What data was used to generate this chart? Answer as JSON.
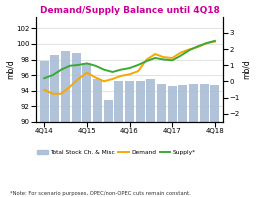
{
  "title": "Demand/Supply Balance until 4Q18",
  "title_color": "#cc0099",
  "ylabel_left": "mb/d",
  "ylabel_right": "mb/d",
  "background_color": "#ffffff",
  "bars_left_y": [
    97.8,
    98.6,
    99.1,
    98.8,
    97.5,
    95.5,
    92.8,
    95.3,
    95.3,
    95.2,
    95.5,
    94.8,
    94.6,
    94.7,
    94.8,
    94.8,
    94.7
  ],
  "bar_x": [
    0,
    0.5,
    1.0,
    1.5,
    2.0,
    2.5,
    3.0,
    3.5,
    4.0,
    4.5,
    5.0,
    5.5,
    6.0,
    6.5,
    7.0,
    7.5,
    8.0
  ],
  "demand_x": [
    0,
    0.4,
    0.8,
    1.2,
    1.6,
    2.0,
    2.4,
    2.8,
    3.2,
    3.6,
    4.0,
    4.4,
    4.8,
    5.2,
    5.6,
    6.0,
    6.4,
    6.8,
    7.2,
    7.6,
    8.0
  ],
  "demand_y": [
    94.1,
    93.6,
    93.6,
    94.5,
    95.5,
    96.3,
    95.7,
    95.2,
    95.5,
    95.9,
    96.1,
    96.5,
    98.0,
    98.7,
    98.3,
    98.2,
    98.9,
    99.3,
    99.6,
    100.1,
    100.3
  ],
  "supply_x": [
    0,
    0.4,
    0.8,
    1.2,
    1.6,
    2.0,
    2.4,
    2.8,
    3.2,
    3.6,
    4.0,
    4.4,
    4.8,
    5.2,
    5.6,
    6.0,
    6.4,
    6.8,
    7.2,
    7.6,
    8.0
  ],
  "supply_y": [
    95.6,
    96.0,
    96.7,
    97.2,
    97.3,
    97.5,
    97.2,
    96.7,
    96.4,
    96.7,
    96.9,
    97.3,
    97.8,
    98.2,
    98.0,
    97.9,
    98.5,
    99.2,
    99.7,
    100.1,
    100.4
  ],
  "bar_color": "#a8bdd4",
  "demand_color": "#f5a800",
  "supply_color": "#3aaa35",
  "ylim_left": [
    90,
    103.5
  ],
  "ylim_right": [
    -2.5,
    4.0
  ],
  "yticks_left": [
    90,
    92,
    94,
    96,
    98,
    100,
    102
  ],
  "yticks_right": [
    -2.0,
    -1.0,
    0.0,
    1.0,
    2.0,
    3.0
  ],
  "x_major": [
    0,
    2,
    4,
    6,
    8
  ],
  "x_major_labels": [
    "4Q14",
    "4Q15",
    "4Q16",
    "4Q17",
    "4Q18"
  ],
  "xlim": [
    -0.4,
    8.4
  ],
  "note": "*Note: For scenario purposes, OPEC/non-OPEC cuts remain constant.",
  "legend_items": [
    "Total Stock Ch. & Misc",
    "Demand",
    "Supply*"
  ],
  "legend_colors": [
    "#a8bdd4",
    "#f5a800",
    "#3aaa35"
  ]
}
